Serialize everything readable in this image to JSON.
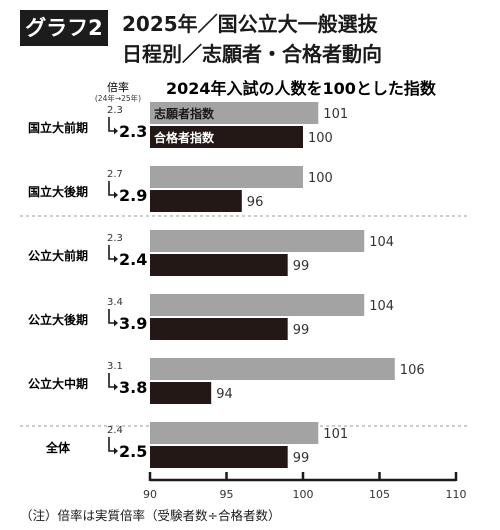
{
  "header": {
    "badge": "グラフ2",
    "title_line1": "2025年／国公立大一般選抜",
    "title_line2": "日程別／志願者・合格者動向"
  },
  "footnote": "（注）倍率は実質倍率（受験者数÷合格者数）",
  "colors": {
    "applicants": "#a3a3a3",
    "passers": "#231815",
    "divider": "#999999"
  },
  "chart_data": {
    "type": "bar",
    "title": "2024年入試の人数を100とした指数",
    "ratio_header": "倍率",
    "ratio_subheader": "(24年→25年)",
    "categories": [
      "国立大前期",
      "国立大後期",
      "公立大前期",
      "公立大後期",
      "公立大中期",
      "全体"
    ],
    "series": [
      {
        "name": "志願者指数",
        "values": [
          101,
          100,
          104,
          104,
          106,
          101
        ]
      },
      {
        "name": "合格者指数",
        "values": [
          100,
          96,
          99,
          99,
          94,
          99
        ]
      }
    ],
    "ratio_2024": [
      "2.3",
      "2.7",
      "2.3",
      "3.4",
      "3.1",
      "2.4"
    ],
    "ratio_2025": [
      "2.3",
      "2.9",
      "2.4",
      "3.9",
      "3.8",
      "2.5"
    ],
    "xlim": [
      90,
      110
    ],
    "xticks": [
      90,
      95,
      100,
      105,
      110
    ],
    "legend_position": "inside-first-group",
    "group_dividers": "dashed"
  }
}
